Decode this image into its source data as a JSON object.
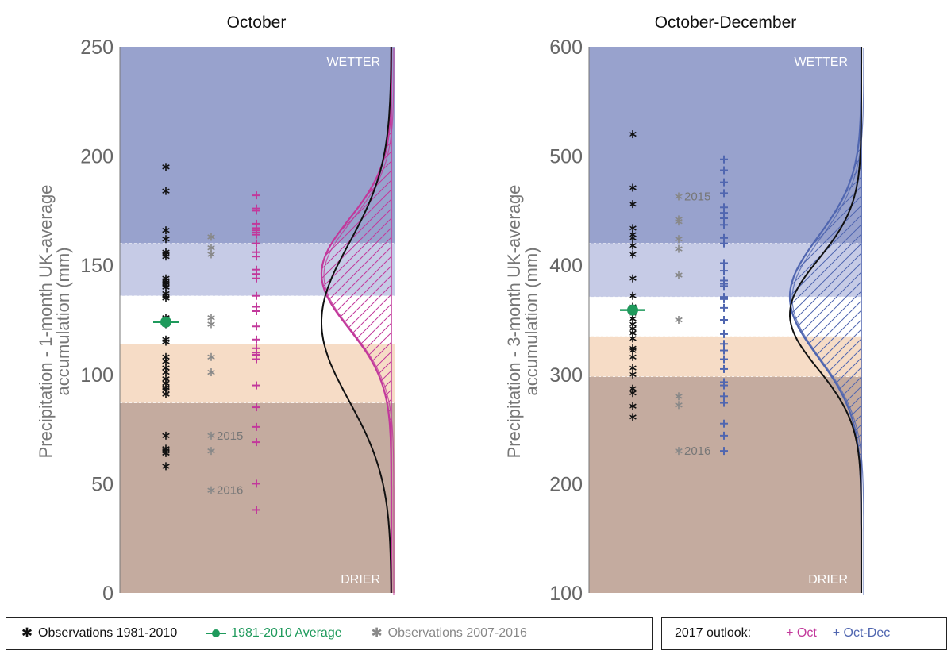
{
  "chart_data": [
    {
      "type": "scatter",
      "title": "October",
      "ylabel_lines": [
        "Precipitation - 1-month UK-average",
        "accumulation (mm)"
      ],
      "ylim": [
        0,
        250
      ],
      "yticks": [
        0,
        50,
        100,
        150,
        200,
        250
      ],
      "band_labels": {
        "top": "WETTER",
        "bottom": "DRIER"
      },
      "tercile_bounds": [
        87,
        114,
        136,
        160
      ],
      "colors": {
        "wetter": "#98a2cd",
        "wet": "#c6cbe6",
        "near": "#ffffff",
        "dry": "#f6dcc6",
        "drier": "#c4ab9f",
        "outlook": "#c2389b"
      },
      "observations_1981_2010": [
        195,
        184,
        166,
        162,
        156,
        155,
        154,
        144,
        143,
        142,
        141,
        140,
        137,
        136,
        135,
        126,
        125,
        123,
        116,
        115,
        108,
        106,
        103,
        101,
        98,
        96,
        94,
        93,
        91,
        72,
        66,
        65,
        64,
        58
      ],
      "average_1981_2010": 124,
      "observations_2007_2016": [
        {
          "value": 163
        },
        {
          "value": 158
        },
        {
          "value": 155
        },
        {
          "value": 126
        },
        {
          "value": 123
        },
        {
          "value": 108
        },
        {
          "value": 101
        },
        {
          "value": 72,
          "label": "2015"
        },
        {
          "value": 65
        },
        {
          "value": 47,
          "label": "2016"
        }
      ],
      "outlook_2017": [
        182,
        176,
        175,
        169,
        167,
        166,
        165,
        164,
        160,
        156,
        154,
        148,
        146,
        144,
        136,
        131,
        129,
        122,
        116,
        112,
        110,
        109,
        107,
        95,
        85,
        76,
        69,
        50,
        38
      ]
    },
    {
      "type": "scatter",
      "title": "October-December",
      "ylabel_lines": [
        "Precipitation - 3-month UK-average",
        "accumulation (mm)"
      ],
      "ylim": [
        100,
        600
      ],
      "yticks": [
        100,
        200,
        300,
        400,
        500,
        600
      ],
      "band_labels": {
        "top": "WETTER",
        "bottom": "DRIER"
      },
      "tercile_bounds": [
        298,
        335,
        371,
        420
      ],
      "colors": {
        "wetter": "#98a2cd",
        "wet": "#c6cbe6",
        "near": "#ffffff",
        "dry": "#f6dcc6",
        "drier": "#c4ab9f",
        "outlook": "#5066b0"
      },
      "observations_1981_2010": [
        520,
        471,
        456,
        434,
        428,
        425,
        418,
        410,
        388,
        372,
        362,
        356,
        351,
        346,
        342,
        338,
        333,
        324,
        322,
        316,
        306,
        300,
        287,
        283,
        271,
        261
      ],
      "average_1981_2010": 359,
      "observations_2007_2016": [
        {
          "value": 463,
          "label": "2015"
        },
        {
          "value": 442
        },
        {
          "value": 440
        },
        {
          "value": 424
        },
        {
          "value": 415
        },
        {
          "value": 391
        },
        {
          "value": 350
        },
        {
          "value": 280
        },
        {
          "value": 272
        },
        {
          "value": 230,
          "label": "2016"
        }
      ],
      "outlook_2017": [
        497,
        487,
        476,
        466,
        453,
        448,
        443,
        437,
        425,
        420,
        402,
        395,
        386,
        383,
        381,
        371,
        369,
        361,
        350,
        337,
        328,
        322,
        314,
        305,
        293,
        290,
        280,
        274,
        255,
        244,
        230
      ]
    }
  ],
  "legend": {
    "obs_label": "Observations 1981-2010",
    "avg_label": "1981-2010 Average",
    "recent_label": "Observations 2007-2016",
    "outlook_title": "2017 outlook:",
    "outlook_oct": "+ Oct",
    "outlook_octdec": "+ Oct-Dec",
    "colors": {
      "obs": "#111111",
      "avg": "#1f9a5c",
      "recent": "#888888",
      "oct": "#c2389b",
      "octdec": "#5066b0"
    }
  }
}
